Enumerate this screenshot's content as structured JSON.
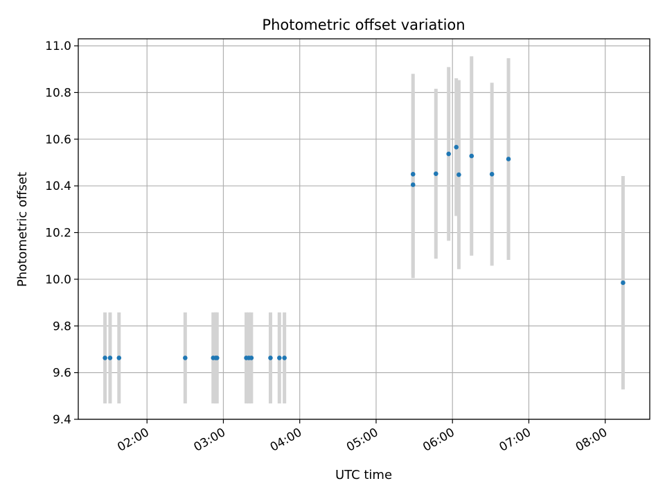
{
  "chart_data": {
    "type": "scatter",
    "title": "Photometric offset variation",
    "xlabel": "UTC time",
    "ylabel": "Photometric offset",
    "x_ticks": [
      "02:00",
      "03:00",
      "04:00",
      "05:00",
      "06:00",
      "07:00",
      "08:00"
    ],
    "y_ticks": [
      "9.4",
      "9.6",
      "9.8",
      "10.0",
      "10.2",
      "10.4",
      "10.6",
      "10.8",
      "11.0"
    ],
    "xlim": [
      "01:06",
      "08:35"
    ],
    "ylim": [
      9.4,
      11.03
    ],
    "grid": true,
    "legend": "none",
    "marker_color": "#1f77b4",
    "errorbar_color": "#d3d3d3",
    "points": [
      {
        "x": "01:27",
        "y": 9.663,
        "err": 0.195
      },
      {
        "x": "01:31",
        "y": 9.663,
        "err": 0.195
      },
      {
        "x": "01:38",
        "y": 9.663,
        "err": 0.195
      },
      {
        "x": "02:30",
        "y": 9.663,
        "err": 0.195
      },
      {
        "x": "02:52",
        "y": 9.663,
        "err": 0.195
      },
      {
        "x": "02:54",
        "y": 9.663,
        "err": 0.195
      },
      {
        "x": "02:55",
        "y": 9.663,
        "err": 0.195
      },
      {
        "x": "03:18",
        "y": 9.663,
        "err": 0.195
      },
      {
        "x": "03:20",
        "y": 9.663,
        "err": 0.195
      },
      {
        "x": "03:22",
        "y": 9.663,
        "err": 0.195
      },
      {
        "x": "03:37",
        "y": 9.663,
        "err": 0.195
      },
      {
        "x": "03:44",
        "y": 9.663,
        "err": 0.195
      },
      {
        "x": "03:48",
        "y": 9.663,
        "err": 0.195
      },
      {
        "x": "05:29",
        "y": 10.45,
        "err": 0.43
      },
      {
        "x": "05:29",
        "y": 10.405,
        "err": 0.4
      },
      {
        "x": "05:47",
        "y": 10.452,
        "err": 0.364
      },
      {
        "x": "05:57",
        "y": 10.537,
        "err": 0.372
      },
      {
        "x": "06:03",
        "y": 10.566,
        "err": 0.295
      },
      {
        "x": "06:05",
        "y": 10.448,
        "err": 0.405
      },
      {
        "x": "06:15",
        "y": 10.528,
        "err": 0.427
      },
      {
        "x": "06:31",
        "y": 10.45,
        "err": 0.392
      },
      {
        "x": "06:44",
        "y": 10.515,
        "err": 0.432
      },
      {
        "x": "08:14",
        "y": 9.985,
        "err": 0.457
      }
    ]
  }
}
